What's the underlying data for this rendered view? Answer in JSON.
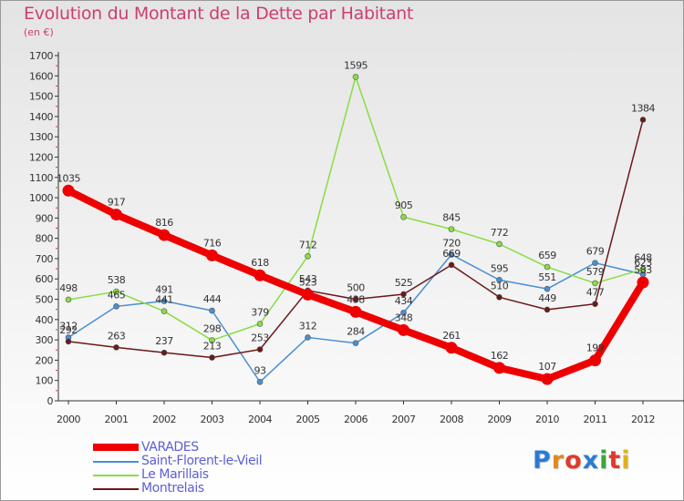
{
  "title": "Evolution du Montant de la Dette par Habitant",
  "subtitle": "(en €)",
  "logo_text": "Proxiti",
  "chart_data": {
    "type": "line",
    "title": "Evolution du Montant de la Dette par Habitant",
    "ylabel": "(en €)",
    "x": [
      "2000",
      "2001",
      "2002",
      "2003",
      "2004",
      "2005",
      "2006",
      "2007",
      "2008",
      "2009",
      "2010",
      "2011",
      "2012"
    ],
    "ylim": [
      0,
      1700
    ],
    "yticks": [
      0,
      100,
      200,
      300,
      400,
      500,
      600,
      700,
      800,
      900,
      1000,
      1100,
      1200,
      1300,
      1400,
      1500,
      1600,
      1700
    ],
    "grid": false,
    "legend": "bottom-left",
    "series": [
      {
        "name": "VARADES",
        "color": "#ee0000",
        "values": [
          1035,
          917,
          816,
          716,
          618,
          523,
          438,
          348,
          261,
          162,
          107,
          199,
          583
        ],
        "labels": [
          "1035",
          "917",
          "816",
          "716",
          "618",
          "523",
          "438",
          "348",
          "261",
          "162",
          "107",
          "199",
          "583"
        ]
      },
      {
        "name": "Saint-Florent-le-Vieil",
        "color": "#4a8fd0",
        "values": [
          312,
          465,
          491,
          444,
          93,
          312,
          284,
          434,
          720,
          595,
          551,
          679,
          623
        ],
        "labels": [
          "312",
          "465",
          "491",
          "444",
          "93",
          "312",
          "284",
          "434",
          "720",
          "595",
          "551",
          "679",
          "623"
        ]
      },
      {
        "name": "Le Marillais",
        "color": "#88dd44",
        "values": [
          498,
          538,
          441,
          298,
          379,
          712,
          1595,
          905,
          845,
          772,
          659,
          579,
          648
        ],
        "labels": [
          "498",
          "538",
          "441",
          "298",
          "379",
          "712",
          "1595",
          "905",
          "845",
          "772",
          "659",
          "579",
          "648"
        ]
      },
      {
        "name": "Montrelais",
        "color": "#6b1818",
        "values": [
          292,
          263,
          237,
          213,
          253,
          543,
          500,
          525,
          669,
          510,
          449,
          477,
          1384
        ],
        "labels": [
          "292",
          "263",
          "237",
          "213",
          "253",
          "543",
          "500",
          "525",
          "669",
          "510",
          "449",
          "477",
          "1384"
        ]
      }
    ]
  }
}
